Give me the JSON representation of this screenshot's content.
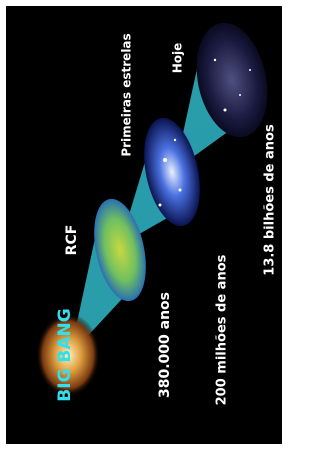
{
  "events": [
    {
      "label": "BIG BANG",
      "time": "380.000 anos"
    },
    {
      "label": "RCF",
      "time": "200 milhões de anos"
    },
    {
      "label": "Primeiras estrelas",
      "time": "13.8 bilhões de anos"
    },
    {
      "label": "Hoje"
    }
  ]
}
